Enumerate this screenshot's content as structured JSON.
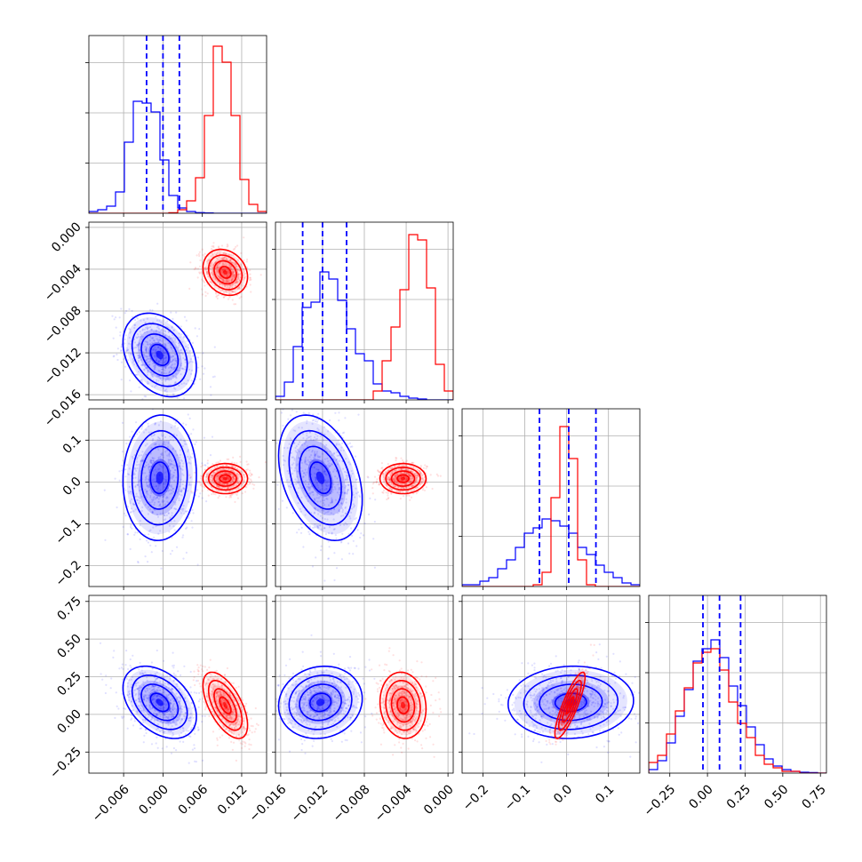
{
  "chart_data": {
    "type": "corner",
    "parameters": 4,
    "grid": true,
    "legend": "none",
    "colors": {
      "blue": "#0000ff",
      "red": "#ff0000"
    },
    "quantile_lines": [
      [
        -0.0025,
        0.0,
        0.0025
      ],
      [
        -0.0139,
        -0.012,
        -0.0097
      ],
      [
        -0.065,
        0.005,
        0.07
      ],
      [
        -0.03,
        0.08,
        0.22
      ]
    ],
    "axes_ranges": [
      [
        -0.0113,
        0.0158
      ],
      [
        -0.0165,
        0.0005
      ],
      [
        -0.25,
        0.175
      ],
      [
        -0.39,
        0.79
      ]
    ],
    "tick_labels": [
      [
        "−0.006",
        "0.000",
        "0.006",
        "0.012"
      ],
      [
        "−0.016",
        "−0.012",
        "−0.008",
        "−0.004",
        "0.000"
      ],
      [
        "−0.2",
        "−0.1",
        "0.0",
        "0.1"
      ],
      [
        "−0.25",
        "0.00",
        "0.25",
        "0.50",
        "0.75"
      ]
    ],
    "tick_values": [
      [
        -0.006,
        0.0,
        0.006,
        0.012
      ],
      [
        -0.016,
        -0.012,
        -0.008,
        -0.004,
        0.0
      ],
      [
        -0.2,
        -0.1,
        0.0,
        0.1
      ],
      [
        -0.25,
        0.0,
        0.25,
        0.5,
        0.75
      ]
    ],
    "series": [
      {
        "color": "#0000ff",
        "means": [
          -0.0005,
          -0.0122,
          0.01,
          0.08
        ],
        "sds": [
          0.0028,
          0.002,
          0.075,
          0.12
        ],
        "corr": [
          [
            1,
            -0.3,
            0.05,
            -0.4
          ],
          [
            -0.3,
            1,
            -0.35,
            0.1
          ],
          [
            0.05,
            -0.35,
            1,
            0.05
          ],
          [
            -0.4,
            0.1,
            0.05,
            1
          ]
        ],
        "hist": [
          [
            0.01,
            0.02,
            0.04,
            0.12,
            0.4,
            0.63,
            0.62,
            0.57,
            0.3,
            0.1,
            0.03,
            0.01,
            0.004,
            0.002,
            0,
            0,
            0,
            0,
            0,
            0
          ],
          [
            0.02,
            0.1,
            0.3,
            0.52,
            0.55,
            0.72,
            0.68,
            0.56,
            0.4,
            0.26,
            0.22,
            0.09,
            0.05,
            0.04,
            0.02,
            0.01,
            0.005,
            0,
            0,
            0
          ],
          [
            0.01,
            0.01,
            0.03,
            0.05,
            0.1,
            0.15,
            0.22,
            0.3,
            0.33,
            0.38,
            0.37,
            0.34,
            0.3,
            0.22,
            0.18,
            0.12,
            0.08,
            0.05,
            0.02,
            0.01
          ],
          [
            0.02,
            0.07,
            0.17,
            0.32,
            0.47,
            0.63,
            0.7,
            0.75,
            0.65,
            0.49,
            0.38,
            0.26,
            0.16,
            0.08,
            0.04,
            0.02,
            0.01,
            0.005,
            0.003,
            0
          ]
        ]
      },
      {
        "color": "#ff0000",
        "means": [
          0.0095,
          -0.0043,
          0.008,
          0.06
        ],
        "sds": [
          0.0017,
          0.0011,
          0.018,
          0.11
        ],
        "corr": [
          [
            1,
            -0.2,
            0.0,
            -0.6
          ],
          [
            -0.2,
            1,
            0.0,
            -0.1
          ],
          [
            0.0,
            0.0,
            1,
            0.85
          ],
          [
            -0.6,
            -0.1,
            0.85,
            1
          ]
        ],
        "hist": [
          [
            0,
            0,
            0,
            0,
            0,
            0,
            0,
            0,
            0,
            0.003,
            0.02,
            0.07,
            0.2,
            0.55,
            0.94,
            0.85,
            0.55,
            0.19,
            0.05,
            0.01
          ],
          [
            0,
            0,
            0,
            0,
            0,
            0,
            0,
            0,
            0,
            0,
            0,
            0.05,
            0.22,
            0.41,
            0.62,
            0.93,
            0.9,
            0.63,
            0.2,
            0.05
          ],
          [
            0,
            0,
            0,
            0,
            0,
            0,
            0,
            0,
            0.01,
            0.08,
            0.5,
            0.9,
            0.72,
            0.15,
            0.01,
            0,
            0,
            0,
            0,
            0
          ],
          [
            0.06,
            0.1,
            0.22,
            0.35,
            0.48,
            0.62,
            0.68,
            0.7,
            0.58,
            0.4,
            0.28,
            0.2,
            0.1,
            0.05,
            0.03,
            0.01,
            0.01,
            0,
            0,
            0
          ]
        ]
      }
    ]
  }
}
